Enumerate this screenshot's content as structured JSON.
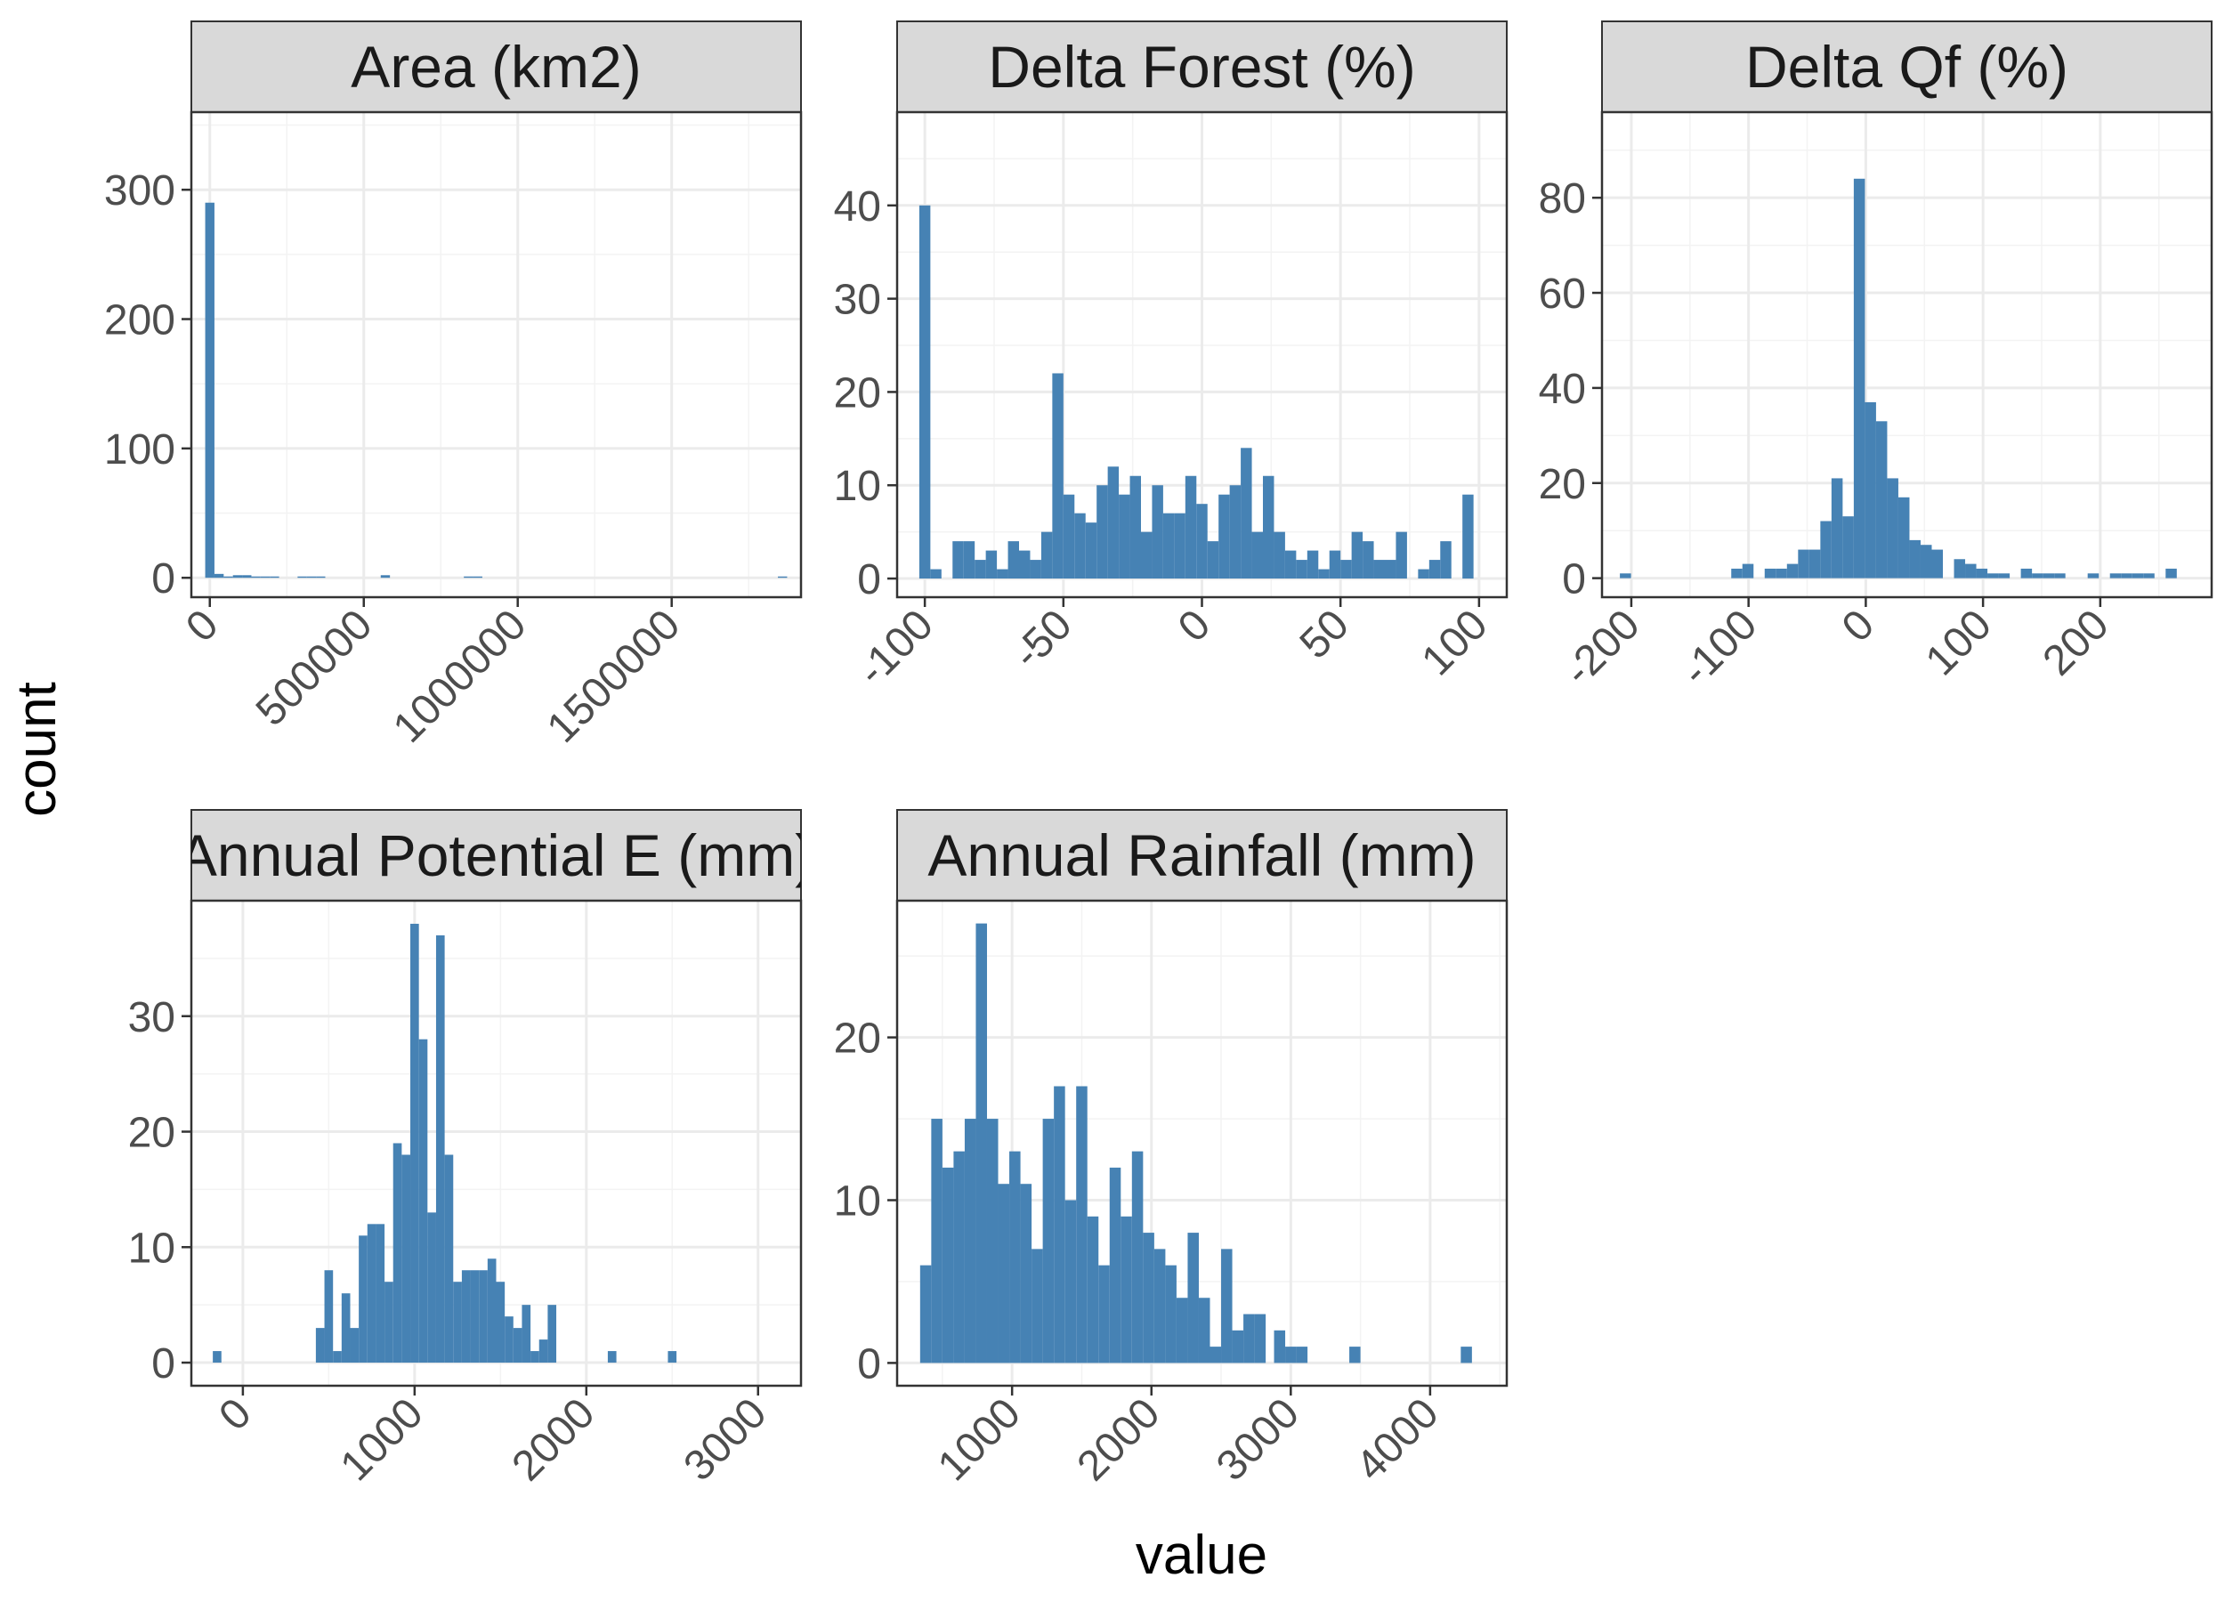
{
  "figure": {
    "xlabel": "value",
    "ylabel": "count",
    "bar_color": "#4682b4",
    "strip_color": "#d9d9d9"
  },
  "chart_data": [
    {
      "type": "bar",
      "title": "Area (km2)",
      "xlim": [
        -60000,
        1920000
      ],
      "ylim": [
        -15,
        360
      ],
      "xticks": [
        0,
        500000,
        1000000,
        1500000
      ],
      "xtick_labels": [
        "0",
        "500000",
        "1000000",
        "1500000"
      ],
      "yticks": [
        0,
        100,
        200,
        300
      ],
      "ytick_labels": [
        "0",
        "100",
        "200",
        "300"
      ],
      "bin_width": 30000,
      "bins": [
        {
          "x": 0,
          "count": 290
        },
        {
          "x": 30000,
          "count": 3
        },
        {
          "x": 60000,
          "count": 1
        },
        {
          "x": 90000,
          "count": 2
        },
        {
          "x": 120000,
          "count": 2
        },
        {
          "x": 150000,
          "count": 1
        },
        {
          "x": 180000,
          "count": 1
        },
        {
          "x": 210000,
          "count": 1
        },
        {
          "x": 300000,
          "count": 1
        },
        {
          "x": 330000,
          "count": 1
        },
        {
          "x": 360000,
          "count": 1
        },
        {
          "x": 570000,
          "count": 2
        },
        {
          "x": 840000,
          "count": 1
        },
        {
          "x": 870000,
          "count": 1
        },
        {
          "x": 1860000,
          "count": 1
        }
      ]
    },
    {
      "type": "bar",
      "title": "Delta Forest (%)",
      "xlim": [
        -110,
        110
      ],
      "ylim": [
        -2,
        50
      ],
      "xticks": [
        -100,
        -50,
        0,
        50,
        100
      ],
      "xtick_labels": [
        "-100",
        "-50",
        "0",
        "50",
        "100"
      ],
      "yticks": [
        0,
        10,
        20,
        30,
        40
      ],
      "ytick_labels": [
        "0",
        "10",
        "20",
        "30",
        "40"
      ],
      "bin_width": 4,
      "bins": [
        {
          "x": -100,
          "count": 40
        },
        {
          "x": -96,
          "count": 1
        },
        {
          "x": -88,
          "count": 4
        },
        {
          "x": -84,
          "count": 4
        },
        {
          "x": -80,
          "count": 2
        },
        {
          "x": -76,
          "count": 3
        },
        {
          "x": -72,
          "count": 1
        },
        {
          "x": -68,
          "count": 4
        },
        {
          "x": -64,
          "count": 3
        },
        {
          "x": -60,
          "count": 2
        },
        {
          "x": -56,
          "count": 5
        },
        {
          "x": -52,
          "count": 22
        },
        {
          "x": -48,
          "count": 9
        },
        {
          "x": -44,
          "count": 7
        },
        {
          "x": -40,
          "count": 6
        },
        {
          "x": -36,
          "count": 10
        },
        {
          "x": -32,
          "count": 12
        },
        {
          "x": -28,
          "count": 9
        },
        {
          "x": -24,
          "count": 11
        },
        {
          "x": -20,
          "count": 5
        },
        {
          "x": -16,
          "count": 10
        },
        {
          "x": -12,
          "count": 7
        },
        {
          "x": -8,
          "count": 7
        },
        {
          "x": -4,
          "count": 11
        },
        {
          "x": 0,
          "count": 8
        },
        {
          "x": 4,
          "count": 4
        },
        {
          "x": 8,
          "count": 9
        },
        {
          "x": 12,
          "count": 10
        },
        {
          "x": 16,
          "count": 14
        },
        {
          "x": 20,
          "count": 5
        },
        {
          "x": 24,
          "count": 11
        },
        {
          "x": 28,
          "count": 5
        },
        {
          "x": 32,
          "count": 3
        },
        {
          "x": 36,
          "count": 2
        },
        {
          "x": 40,
          "count": 3
        },
        {
          "x": 44,
          "count": 1
        },
        {
          "x": 48,
          "count": 3
        },
        {
          "x": 52,
          "count": 2
        },
        {
          "x": 56,
          "count": 5
        },
        {
          "x": 60,
          "count": 4
        },
        {
          "x": 64,
          "count": 2
        },
        {
          "x": 68,
          "count": 2
        },
        {
          "x": 72,
          "count": 5
        },
        {
          "x": 80,
          "count": 1
        },
        {
          "x": 84,
          "count": 2
        },
        {
          "x": 88,
          "count": 4
        },
        {
          "x": 96,
          "count": 9
        }
      ]
    },
    {
      "type": "bar",
      "title": "Delta Qf (%)",
      "xlim": [
        -225,
        295
      ],
      "ylim": [
        -4,
        98
      ],
      "xticks": [
        -200,
        -100,
        0,
        100,
        200
      ],
      "xtick_labels": [
        "-200",
        "-100",
        "0",
        "100",
        "200"
      ],
      "yticks": [
        0,
        20,
        40,
        60,
        80
      ],
      "ytick_labels": [
        "0",
        "20",
        "40",
        "60",
        "80"
      ],
      "bin_width": 9.5,
      "bins": [
        {
          "x": -205,
          "count": 1
        },
        {
          "x": -110,
          "count": 2
        },
        {
          "x": -100.5,
          "count": 3
        },
        {
          "x": -81.5,
          "count": 2
        },
        {
          "x": -72,
          "count": 2
        },
        {
          "x": -62.5,
          "count": 3
        },
        {
          "x": -53,
          "count": 6
        },
        {
          "x": -43.5,
          "count": 6
        },
        {
          "x": -34,
          "count": 12
        },
        {
          "x": -24.5,
          "count": 21
        },
        {
          "x": -15,
          "count": 13
        },
        {
          "x": -5.5,
          "count": 84
        },
        {
          "x": 4,
          "count": 37
        },
        {
          "x": 13.5,
          "count": 33
        },
        {
          "x": 23,
          "count": 21
        },
        {
          "x": 32.5,
          "count": 17
        },
        {
          "x": 42,
          "count": 8
        },
        {
          "x": 51.5,
          "count": 7
        },
        {
          "x": 61,
          "count": 6
        },
        {
          "x": 80,
          "count": 4
        },
        {
          "x": 89.5,
          "count": 3
        },
        {
          "x": 99,
          "count": 2
        },
        {
          "x": 108.5,
          "count": 1
        },
        {
          "x": 118,
          "count": 1
        },
        {
          "x": 137,
          "count": 2
        },
        {
          "x": 146.5,
          "count": 1
        },
        {
          "x": 156,
          "count": 1
        },
        {
          "x": 165.5,
          "count": 1
        },
        {
          "x": 194,
          "count": 1
        },
        {
          "x": 213,
          "count": 1
        },
        {
          "x": 222.5,
          "count": 1
        },
        {
          "x": 232,
          "count": 1
        },
        {
          "x": 241.5,
          "count": 1
        },
        {
          "x": 260.5,
          "count": 2
        }
      ]
    },
    {
      "type": "bar",
      "title": "Annual Potential E (mm)",
      "xlim": [
        -300,
        3250
      ],
      "ylim": [
        -2,
        40
      ],
      "xticks": [
        0,
        1000,
        2000,
        3000
      ],
      "xtick_labels": [
        "0",
        "1000",
        "2000",
        "3000"
      ],
      "yticks": [
        0,
        10,
        20,
        30
      ],
      "ytick_labels": [
        "0",
        "10",
        "20",
        "30"
      ],
      "bin_width": 50,
      "bins": [
        {
          "x": -150,
          "count": 1
        },
        {
          "x": 450,
          "count": 3
        },
        {
          "x": 500,
          "count": 8
        },
        {
          "x": 550,
          "count": 1
        },
        {
          "x": 600,
          "count": 6
        },
        {
          "x": 650,
          "count": 3
        },
        {
          "x": 700,
          "count": 11
        },
        {
          "x": 750,
          "count": 12
        },
        {
          "x": 800,
          "count": 12
        },
        {
          "x": 850,
          "count": 7
        },
        {
          "x": 900,
          "count": 19
        },
        {
          "x": 950,
          "count": 18
        },
        {
          "x": 1000,
          "count": 38
        },
        {
          "x": 1050,
          "count": 28
        },
        {
          "x": 1100,
          "count": 13
        },
        {
          "x": 1150,
          "count": 37
        },
        {
          "x": 1200,
          "count": 18
        },
        {
          "x": 1250,
          "count": 7
        },
        {
          "x": 1300,
          "count": 8
        },
        {
          "x": 1350,
          "count": 8
        },
        {
          "x": 1400,
          "count": 8
        },
        {
          "x": 1450,
          "count": 9
        },
        {
          "x": 1500,
          "count": 7
        },
        {
          "x": 1550,
          "count": 4
        },
        {
          "x": 1600,
          "count": 3
        },
        {
          "x": 1650,
          "count": 5
        },
        {
          "x": 1700,
          "count": 1
        },
        {
          "x": 1750,
          "count": 2
        },
        {
          "x": 1800,
          "count": 5
        },
        {
          "x": 2150,
          "count": 1
        },
        {
          "x": 2500,
          "count": 1
        }
      ]
    },
    {
      "type": "bar",
      "title": "Annual Rainfall (mm)",
      "xlim": [
        175,
        4550
      ],
      "ylim": [
        -1.4,
        28.4
      ],
      "xticks": [
        1000,
        2000,
        3000,
        4000
      ],
      "xtick_labels": [
        "1000",
        "2000",
        "3000",
        "4000"
      ],
      "yticks": [
        0,
        10,
        20
      ],
      "ytick_labels": [
        "0",
        "10",
        "20"
      ],
      "bin_width": 80,
      "bins": [
        {
          "x": 380,
          "count": 6
        },
        {
          "x": 460,
          "count": 15
        },
        {
          "x": 540,
          "count": 12
        },
        {
          "x": 620,
          "count": 13
        },
        {
          "x": 700,
          "count": 15
        },
        {
          "x": 780,
          "count": 27
        },
        {
          "x": 860,
          "count": 15
        },
        {
          "x": 940,
          "count": 11
        },
        {
          "x": 1020,
          "count": 13
        },
        {
          "x": 1100,
          "count": 11
        },
        {
          "x": 1180,
          "count": 7
        },
        {
          "x": 1260,
          "count": 15
        },
        {
          "x": 1340,
          "count": 17
        },
        {
          "x": 1420,
          "count": 10
        },
        {
          "x": 1500,
          "count": 17
        },
        {
          "x": 1580,
          "count": 9
        },
        {
          "x": 1660,
          "count": 6
        },
        {
          "x": 1740,
          "count": 12
        },
        {
          "x": 1820,
          "count": 9
        },
        {
          "x": 1900,
          "count": 13
        },
        {
          "x": 1980,
          "count": 8
        },
        {
          "x": 2060,
          "count": 7
        },
        {
          "x": 2140,
          "count": 6
        },
        {
          "x": 2220,
          "count": 4
        },
        {
          "x": 2300,
          "count": 8
        },
        {
          "x": 2380,
          "count": 4
        },
        {
          "x": 2460,
          "count": 1
        },
        {
          "x": 2540,
          "count": 7
        },
        {
          "x": 2620,
          "count": 2
        },
        {
          "x": 2700,
          "count": 3
        },
        {
          "x": 2780,
          "count": 3
        },
        {
          "x": 2920,
          "count": 2
        },
        {
          "x": 3000,
          "count": 1
        },
        {
          "x": 3080,
          "count": 1
        },
        {
          "x": 3460,
          "count": 1
        },
        {
          "x": 4260,
          "count": 1
        }
      ]
    }
  ]
}
